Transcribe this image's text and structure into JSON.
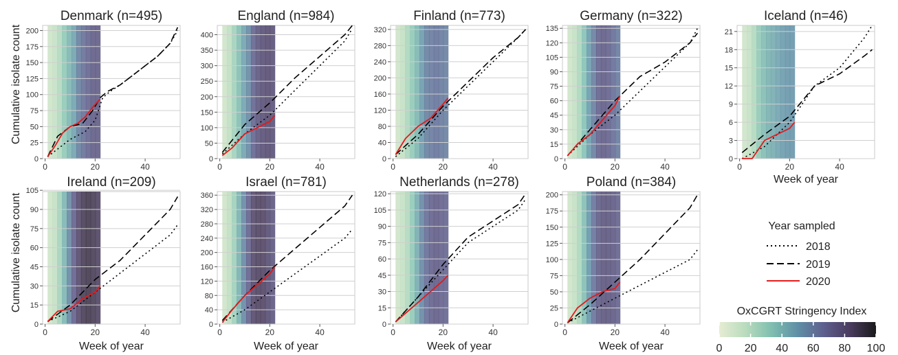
{
  "figure": {
    "y_axis_label": "Cumulative isolate count",
    "x_axis_label": "Week of year",
    "legend": {
      "title": "Year sampled",
      "entries": [
        {
          "label": "2018",
          "style": "dotted",
          "color": "#000000"
        },
        {
          "label": "2019",
          "style": "dashed",
          "color": "#000000"
        },
        {
          "label": "2020",
          "style": "solid",
          "color": "#e31a1c"
        }
      ]
    },
    "colorbar": {
      "title": "OxCGRT Stringency Index",
      "ticks": [
        "0",
        "20",
        "40",
        "60",
        "80",
        "100"
      ],
      "min": 0,
      "max": 100,
      "colors": [
        "#e6ecd3",
        "#b9dcbd",
        "#7fbfb0",
        "#5f8fa6",
        "#5e5f8e",
        "#4a3b5f",
        "#1a1a1a"
      ]
    }
  },
  "chart_data": [
    {
      "type": "line",
      "title": "Denmark (n=495)",
      "xlim": [
        -1,
        54
      ],
      "ylim": [
        0,
        208
      ],
      "yticks": [
        "0",
        "25",
        "50",
        "75",
        "100",
        "125",
        "150",
        "175",
        "200"
      ],
      "xticks": [
        "0",
        "20",
        "40"
      ],
      "stringency": [
        10,
        14,
        20,
        30,
        38,
        45,
        58,
        64,
        68,
        72,
        72
      ],
      "series": [
        {
          "name": "2018",
          "x": [
            1,
            10,
            16,
            20,
            23,
            26,
            30,
            35,
            40,
            45,
            50,
            53
          ],
          "y": [
            3,
            30,
            42,
            60,
            95,
            105,
            115,
            130,
            145,
            160,
            180,
            200
          ]
        },
        {
          "name": "2019",
          "x": [
            1,
            5,
            10,
            15,
            19,
            22,
            25,
            30,
            35,
            40,
            45,
            50,
            53
          ],
          "y": [
            3,
            35,
            50,
            55,
            75,
            95,
            105,
            115,
            130,
            145,
            160,
            180,
            205
          ]
        },
        {
          "name": "2020",
          "x": [
            1,
            4,
            7,
            10,
            13,
            16,
            19,
            22
          ],
          "y": [
            3,
            20,
            40,
            50,
            55,
            65,
            80,
            93
          ]
        }
      ]
    },
    {
      "type": "line",
      "title": "England (n=984)",
      "xlim": [
        -1,
        54
      ],
      "ylim": [
        0,
        430
      ],
      "yticks": [
        "0",
        "50",
        "100",
        "150",
        "200",
        "250",
        "300",
        "350",
        "400"
      ],
      "xticks": [
        "0",
        "20",
        "40"
      ],
      "stringency": [
        10,
        16,
        25,
        35,
        45,
        55,
        68,
        75,
        78,
        80,
        78
      ],
      "series": [
        {
          "name": "2018",
          "x": [
            1,
            10,
            20,
            30,
            40,
            50,
            53
          ],
          "y": [
            15,
            80,
            140,
            220,
            300,
            380,
            420
          ]
        },
        {
          "name": "2019",
          "x": [
            1,
            10,
            20,
            30,
            40,
            50,
            53
          ],
          "y": [
            20,
            110,
            180,
            260,
            330,
            400,
            430
          ]
        },
        {
          "name": "2020",
          "x": [
            1,
            5,
            10,
            15,
            20,
            22
          ],
          "y": [
            10,
            35,
            80,
            100,
            120,
            140
          ]
        }
      ]
    },
    {
      "type": "line",
      "title": "Finland (n=773)",
      "xlim": [
        -1,
        54
      ],
      "ylim": [
        0,
        330
      ],
      "yticks": [
        "0",
        "40",
        "80",
        "120",
        "160",
        "200",
        "240",
        "280",
        "320"
      ],
      "xticks": [
        "0",
        "20",
        "40"
      ],
      "stringency": [
        10,
        15,
        22,
        30,
        38,
        48,
        58,
        60,
        62,
        60,
        58
      ],
      "series": [
        {
          "name": "2018",
          "x": [
            1,
            10,
            20,
            30,
            40,
            50,
            53
          ],
          "y": [
            5,
            50,
            120,
            180,
            240,
            300,
            320
          ]
        },
        {
          "name": "2019",
          "x": [
            1,
            10,
            20,
            30,
            40,
            50,
            53
          ],
          "y": [
            10,
            60,
            130,
            190,
            250,
            300,
            320
          ]
        },
        {
          "name": "2020",
          "x": [
            1,
            5,
            10,
            15,
            20,
            22
          ],
          "y": [
            10,
            50,
            80,
            100,
            135,
            150
          ]
        }
      ]
    },
    {
      "type": "line",
      "title": "Germany (n=322)",
      "xlim": [
        -1,
        54
      ],
      "ylim": [
        0,
        138
      ],
      "yticks": [
        "0",
        "15",
        "30",
        "45",
        "60",
        "75",
        "90",
        "105",
        "120",
        "135"
      ],
      "xticks": [
        "0",
        "20",
        "40"
      ],
      "stringency": [
        10,
        15,
        22,
        34,
        48,
        58,
        70,
        72,
        70,
        65,
        60
      ],
      "series": [
        {
          "name": "2018",
          "x": [
            1,
            10,
            20,
            30,
            40,
            50,
            53
          ],
          "y": [
            3,
            25,
            45,
            70,
            95,
            120,
            135
          ]
        },
        {
          "name": "2019",
          "x": [
            1,
            10,
            20,
            30,
            40,
            50,
            53
          ],
          "y": [
            3,
            30,
            60,
            85,
            100,
            120,
            130
          ]
        },
        {
          "name": "2020",
          "x": [
            1,
            5,
            10,
            15,
            20,
            22
          ],
          "y": [
            3,
            15,
            25,
            40,
            55,
            65
          ]
        }
      ]
    },
    {
      "type": "line",
      "title": "Iceland (n=46)",
      "xlim": [
        -1,
        54
      ],
      "ylim": [
        0,
        22
      ],
      "yticks": [
        "0",
        "3",
        "6",
        "9",
        "12",
        "15",
        "18",
        "21"
      ],
      "xticks": [
        "0",
        "20",
        "40"
      ],
      "stringency": [
        10,
        14,
        20,
        30,
        36,
        40,
        42,
        45,
        48,
        50,
        50
      ],
      "series": [
        {
          "name": "2018",
          "x": [
            1,
            10,
            20,
            30,
            40,
            50,
            53
          ],
          "y": [
            0,
            2,
            6,
            12,
            15,
            20,
            22
          ]
        },
        {
          "name": "2019",
          "x": [
            1,
            10,
            20,
            30,
            40,
            50,
            53
          ],
          "y": [
            1,
            4,
            7,
            12,
            14,
            17,
            18
          ]
        },
        {
          "name": "2020",
          "x": [
            1,
            5,
            10,
            15,
            20,
            22
          ],
          "y": [
            0,
            0,
            3,
            4,
            5,
            6
          ]
        }
      ]
    },
    {
      "type": "line",
      "title": "Ireland (n=209)",
      "xlim": [
        -1,
        54
      ],
      "ylim": [
        0,
        104
      ],
      "yticks": [
        "0",
        "15",
        "30",
        "45",
        "60",
        "75",
        "90",
        "105"
      ],
      "xticks": [
        "0",
        "20",
        "40"
      ],
      "stringency": [
        10,
        15,
        24,
        38,
        55,
        70,
        82,
        88,
        90,
        88,
        85
      ],
      "series": [
        {
          "name": "2018",
          "x": [
            1,
            10,
            20,
            30,
            40,
            50,
            53
          ],
          "y": [
            2,
            10,
            25,
            40,
            55,
            70,
            78
          ]
        },
        {
          "name": "2019",
          "x": [
            1,
            10,
            20,
            30,
            40,
            50,
            53
          ],
          "y": [
            2,
            15,
            35,
            50,
            70,
            90,
            100
          ]
        },
        {
          "name": "2020",
          "x": [
            1,
            5,
            10,
            15,
            20,
            22
          ],
          "y": [
            2,
            10,
            12,
            20,
            25,
            30
          ]
        }
      ]
    },
    {
      "type": "line",
      "title": "Israel (n=781)",
      "xlim": [
        -1,
        54
      ],
      "ylim": [
        0,
        370
      ],
      "yticks": [
        "0",
        "40",
        "80",
        "120",
        "160",
        "200",
        "240",
        "280",
        "320",
        "360"
      ],
      "xticks": [
        "0",
        "20",
        "40"
      ],
      "stringency": [
        10,
        16,
        26,
        40,
        55,
        70,
        82,
        85,
        84,
        80,
        75
      ],
      "series": [
        {
          "name": "2018",
          "x": [
            1,
            10,
            20,
            30,
            40,
            50,
            53
          ],
          "y": [
            5,
            40,
            90,
            140,
            190,
            240,
            265
          ]
        },
        {
          "name": "2019",
          "x": [
            1,
            10,
            20,
            30,
            40,
            50,
            53
          ],
          "y": [
            10,
            80,
            150,
            210,
            270,
            330,
            360
          ]
        },
        {
          "name": "2020",
          "x": [
            1,
            5,
            10,
            15,
            20,
            22
          ],
          "y": [
            5,
            40,
            80,
            110,
            140,
            160
          ]
        }
      ]
    },
    {
      "type": "line",
      "title": "Netherlands (n=278)",
      "xlim": [
        -1,
        54
      ],
      "ylim": [
        0,
        122
      ],
      "yticks": [
        "0",
        "15",
        "30",
        "45",
        "60",
        "75",
        "90",
        "105",
        "120"
      ],
      "xticks": [
        "0",
        "20",
        "40"
      ],
      "stringency": [
        10,
        14,
        20,
        30,
        42,
        55,
        65,
        70,
        72,
        70,
        68
      ],
      "series": [
        {
          "name": "2018",
          "x": [
            1,
            10,
            20,
            30,
            40,
            50,
            53
          ],
          "y": [
            2,
            25,
            50,
            75,
            90,
            105,
            115
          ]
        },
        {
          "name": "2019",
          "x": [
            1,
            10,
            20,
            30,
            40,
            50,
            53
          ],
          "y": [
            2,
            25,
            55,
            80,
            95,
            110,
            120
          ]
        },
        {
          "name": "2020",
          "x": [
            1,
            5,
            10,
            15,
            20,
            22
          ],
          "y": [
            2,
            10,
            20,
            30,
            40,
            45
          ]
        }
      ]
    },
    {
      "type": "line",
      "title": "Poland (n=384)",
      "xlim": [
        -1,
        54
      ],
      "ylim": [
        0,
        205
      ],
      "yticks": [
        "0",
        "25",
        "50",
        "75",
        "100",
        "125",
        "150",
        "175",
        "200"
      ],
      "xticks": [
        "0",
        "20",
        "40"
      ],
      "stringency": [
        10,
        15,
        22,
        35,
        50,
        62,
        72,
        75,
        75,
        73,
        70
      ],
      "series": [
        {
          "name": "2018",
          "x": [
            1,
            10,
            20,
            30,
            40,
            50,
            53
          ],
          "y": [
            2,
            20,
            40,
            60,
            80,
            100,
            115
          ]
        },
        {
          "name": "2019",
          "x": [
            1,
            10,
            20,
            30,
            40,
            50,
            53
          ],
          "y": [
            2,
            30,
            65,
            100,
            140,
            180,
            200
          ]
        },
        {
          "name": "2020",
          "x": [
            1,
            5,
            10,
            15,
            20,
            22
          ],
          "y": [
            2,
            25,
            40,
            50,
            55,
            65
          ]
        }
      ]
    }
  ]
}
